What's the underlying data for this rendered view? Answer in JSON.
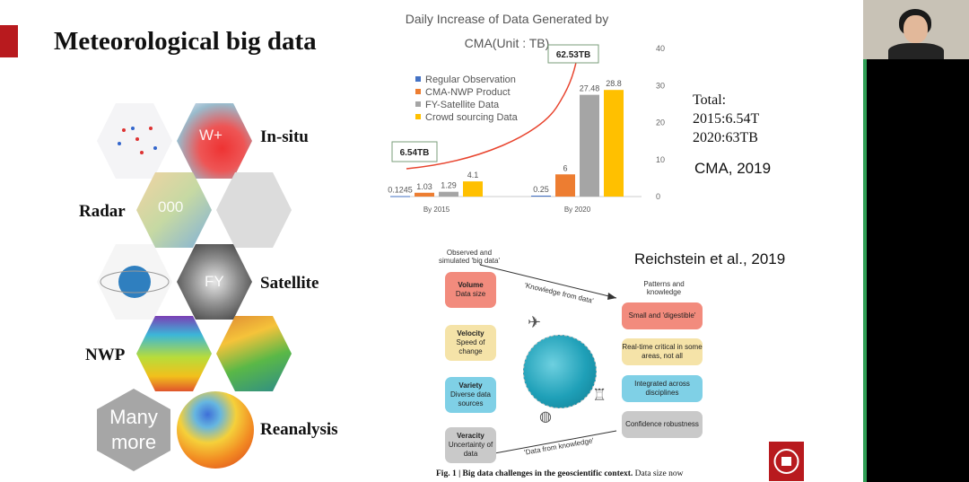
{
  "slide": {
    "title": "Meteorological big data",
    "hex_labels": [
      "In-situ",
      "Radar",
      "Satellite",
      "NWP",
      "Reanalysis"
    ],
    "hex_overlays": [
      "W+",
      "000",
      "FY"
    ],
    "many_more": [
      "Many",
      "more"
    ],
    "total_note": [
      "Total:",
      "2015:6.54T",
      "2020:63TB"
    ],
    "cma_note": "CMA, 2019",
    "reichstein_note": "Reichstein et al., 2019"
  },
  "chart_data": {
    "type": "bar",
    "title_lines": [
      "Daily Increase of Data Generated by",
      "CMA(Unit : TB)"
    ],
    "categories": [
      "By 2015",
      "By 2020"
    ],
    "series": [
      {
        "name": "Regular Observation",
        "color": "#4472c4",
        "values": [
          0.1245,
          0.25
        ]
      },
      {
        "name": "CMA-NWP Product",
        "color": "#ed7d31",
        "values": [
          1.03,
          6
        ]
      },
      {
        "name": "FY-Satellite Data",
        "color": "#a5a5a5",
        "values": [
          1.29,
          27.48
        ]
      },
      {
        "name": "Crowd sourcing Data",
        "color": "#ffc000",
        "values": [
          4.1,
          28.8
        ]
      }
    ],
    "data_labels": [
      [
        "0.1245",
        "1.03",
        "1.29",
        "4.1"
      ],
      [
        "0.25",
        "6",
        "27.48",
        "28.8"
      ]
    ],
    "ylim": [
      0,
      40
    ],
    "yticks": [
      "0",
      "10",
      "20",
      "30",
      "40"
    ],
    "callouts": [
      "6.54TB",
      "62.53TB"
    ],
    "trend_color": "#e8442e"
  },
  "figure": {
    "left_title": [
      "Observed and",
      "simulated 'big data'"
    ],
    "right_title": [
      "Patterns and",
      "knowledge"
    ],
    "arrow_top": "'Knowledge from data'",
    "arrow_bottom": "'Data from knowledge'",
    "left_boxes": [
      {
        "head": "Volume",
        "body": "Data size",
        "color": "#f28b7d"
      },
      {
        "head": "Velocity",
        "body": "Speed of change",
        "color": "#f5e3a8"
      },
      {
        "head": "Variety",
        "body": "Diverse data sources",
        "color": "#7fd0e6"
      },
      {
        "head": "Veracity",
        "body": "Uncertainty of data",
        "color": "#c9c9c9"
      }
    ],
    "right_boxes": [
      {
        "body": "Small and 'digestible'",
        "color": "#f28b7d"
      },
      {
        "body": "Real-time critical in some areas, not all",
        "color": "#f5e3a8"
      },
      {
        "body": "Integrated across disciplines",
        "color": "#7fd0e6"
      },
      {
        "body": "Confidence robustness",
        "color": "#c9c9c9"
      }
    ],
    "caption_bold": "Fig. 1 | Big data challenges in the geoscientific context.",
    "caption_rest": " Data size now"
  }
}
